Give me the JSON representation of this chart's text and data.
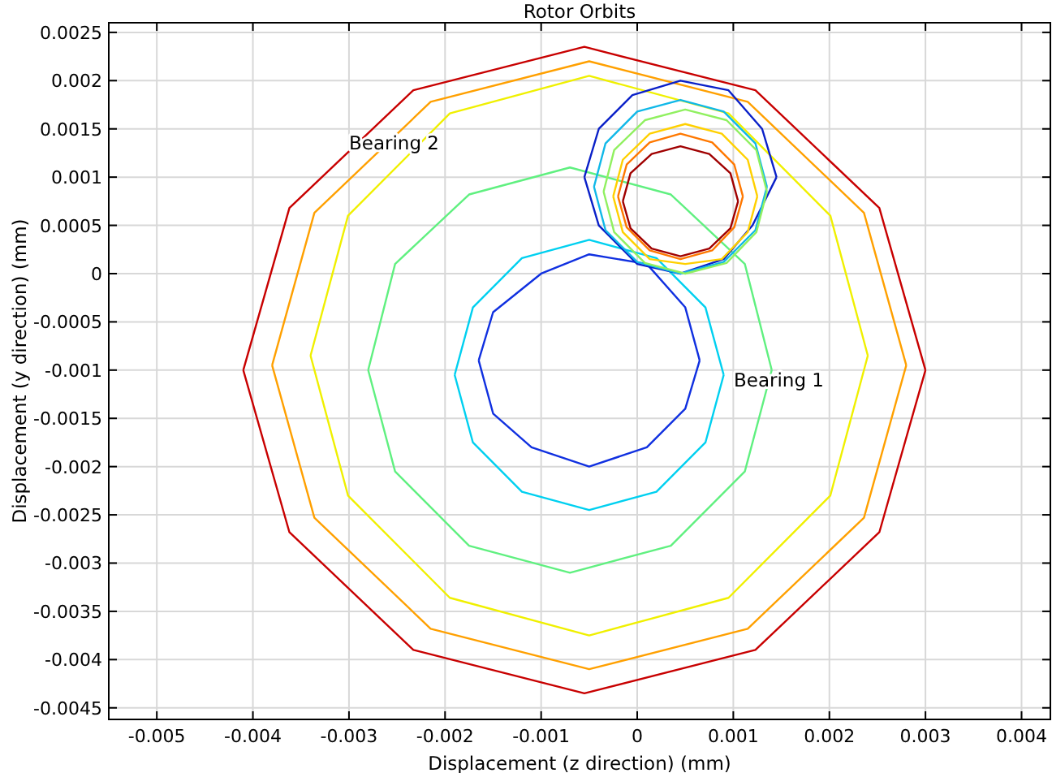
{
  "chart_data": {
    "type": "line",
    "title": "Rotor Orbits",
    "xlabel": "Displacement (z direction) (mm)",
    "ylabel": "Displacement (y direction) (mm)",
    "xlim": [
      -0.0055,
      0.0043
    ],
    "ylim": [
      -0.00462,
      0.0026
    ],
    "xticks": [
      -0.005,
      -0.004,
      -0.003,
      -0.002,
      -0.001,
      0,
      0.001,
      0.002,
      0.003,
      0.004
    ],
    "yticks": [
      -0.0045,
      -0.004,
      -0.0035,
      -0.003,
      -0.0025,
      -0.002,
      -0.0015,
      -0.001,
      -0.0005,
      0,
      0.0005,
      0.001,
      0.0015,
      0.002,
      0.0025
    ],
    "grid": true,
    "marker": "none",
    "line_style": "solid",
    "annotations": [
      "Bearing 2",
      "Bearing 1"
    ],
    "series": [
      {
        "color": "#1030e0",
        "x": [
          -0.00165,
          -0.0015,
          -0.001,
          -0.0005,
          0.0001,
          0.0005,
          0.00065
        ],
        "values": [
          -0.0009,
          -0.0004,
          0,
          0.0002,
          0.0001,
          -0.00035,
          -0.0009
        ]
      },
      {
        "color": "#1030e0",
        "x": [
          -0.00165,
          -0.0015,
          -0.0011,
          -0.0005,
          0.0001,
          0.0005,
          0.00065
        ],
        "values": [
          -0.0009,
          -0.00145,
          -0.0018,
          -0.002,
          -0.0018,
          -0.0014,
          -0.0009
        ]
      },
      {
        "color": "#00d0f0",
        "x": [
          -0.0019,
          -0.00171,
          -0.0012,
          -0.0005,
          0.0002,
          0.00071,
          0.0009
        ],
        "values": [
          -0.00105,
          -0.00035,
          0.00016,
          0.00035,
          0.00016,
          -0.00035,
          -0.00105
        ]
      },
      {
        "color": "#00d0f0",
        "x": [
          -0.0019,
          -0.00171,
          -0.0012,
          -0.0005,
          0.0002,
          0.00071,
          0.0009
        ],
        "values": [
          -0.00105,
          -0.00175,
          -0.00226,
          -0.00245,
          -0.00226,
          -0.00175,
          -0.00105
        ]
      },
      {
        "color": "#60f080",
        "x": [
          -0.0028,
          -0.00252,
          -0.00175,
          -0.0007,
          0.00035,
          0.00112,
          0.0014
        ],
        "values": [
          -0.001,
          0.0001,
          0.00082,
          0.0011,
          0.00082,
          0.0001,
          -0.001
        ]
      },
      {
        "color": "#60f080",
        "x": [
          -0.0028,
          -0.00252,
          -0.00175,
          -0.0007,
          0.00035,
          0.00112,
          0.0014
        ],
        "values": [
          -0.001,
          -0.00205,
          -0.00282,
          -0.0031,
          -0.00282,
          -0.00205,
          -0.001
        ]
      },
      {
        "color": "#f0f000",
        "x": [
          -0.0034,
          -0.00301,
          -0.00195,
          -0.0005,
          0.00095,
          0.00201,
          0.0024
        ],
        "values": [
          -0.00085,
          0.0006,
          0.00166,
          0.00205,
          0.00166,
          0.0006,
          -0.00085
        ]
      },
      {
        "color": "#f0f000",
        "x": [
          -0.0034,
          -0.00301,
          -0.00195,
          -0.0005,
          0.00095,
          0.00201,
          0.0024
        ],
        "values": [
          -0.00085,
          -0.0023,
          -0.00336,
          -0.00375,
          -0.00336,
          -0.0023,
          -0.00085
        ]
      },
      {
        "color": "#ffa000",
        "x": [
          -0.0038,
          -0.00336,
          -0.00215,
          -0.0005,
          0.00115,
          0.00236,
          0.0028
        ],
        "values": [
          -0.00095,
          0.00063,
          0.00178,
          0.0022,
          0.00178,
          0.00063,
          -0.00095
        ]
      },
      {
        "color": "#ffa000",
        "x": [
          -0.0038,
          -0.00336,
          -0.00215,
          -0.0005,
          0.00115,
          0.00236,
          0.0028
        ],
        "values": [
          -0.00095,
          -0.00253,
          -0.00368,
          -0.0041,
          -0.00368,
          -0.00253,
          -0.00095
        ]
      },
      {
        "color": "#c80000",
        "x": [
          -0.0041,
          -0.00362,
          -0.00233,
          -0.00055,
          0.00123,
          0.00252,
          0.003
        ],
        "values": [
          -0.001,
          0.00068,
          0.0019,
          0.00235,
          0.0019,
          0.00068,
          -0.001
        ]
      },
      {
        "color": "#c80000",
        "x": [
          -0.0041,
          -0.00362,
          -0.00233,
          -0.00055,
          0.00123,
          0.00252,
          0.003
        ],
        "values": [
          -0.001,
          -0.00268,
          -0.0039,
          -0.00435,
          -0.0039,
          -0.00268,
          -0.001
        ]
      },
      {
        "color": "#0a20c8",
        "x": [
          -0.00055,
          -0.0004,
          -5e-05,
          0.00045,
          0.00095,
          0.0013,
          0.00145
        ],
        "values": [
          0.001,
          0.0015,
          0.00185,
          0.002,
          0.0019,
          0.0015,
          0.001
        ]
      },
      {
        "color": "#0a20c8",
        "x": [
          -0.00055,
          -0.0004,
          0,
          0.00045,
          0.0009,
          0.0012,
          0.00145
        ],
        "values": [
          0.001,
          0.0005,
          0.0001,
          0,
          0.00015,
          0.0005,
          0.001
        ]
      },
      {
        "color": "#10b8e8",
        "x": [
          -0.00045,
          -0.00033,
          0,
          0.00045,
          0.0009,
          0.00123,
          0.00135
        ],
        "values": [
          0.0009,
          0.00135,
          0.00168,
          0.0018,
          0.00168,
          0.00135,
          0.0009
        ]
      },
      {
        "color": "#10b8e8",
        "x": [
          -0.00045,
          -0.00033,
          0,
          0.00045,
          0.0009,
          0.00123,
          0.00135
        ],
        "values": [
          0.0009,
          0.00045,
          0.00012,
          0,
          0.00012,
          0.00045,
          0.0009
        ]
      },
      {
        "color": "#90f060",
        "x": [
          -0.00035,
          -0.00024,
          8e-05,
          0.0005,
          0.00093,
          0.00124,
          0.00135
        ],
        "values": [
          0.00085,
          0.00128,
          0.00159,
          0.0017,
          0.00159,
          0.00128,
          0.00085
        ]
      },
      {
        "color": "#90f060",
        "x": [
          -0.00035,
          -0.00024,
          8e-05,
          0.0005,
          0.00093,
          0.00124,
          0.00135
        ],
        "values": [
          0.00085,
          0.00043,
          0.00011,
          0,
          0.00011,
          0.00043,
          0.00085
        ]
      },
      {
        "color": "#ffd000",
        "x": [
          -0.00025,
          -0.00015,
          0.00013,
          0.0005,
          0.00088,
          0.00115,
          0.00125
        ],
        "values": [
          0.0008,
          0.00118,
          0.00145,
          0.00155,
          0.00145,
          0.00118,
          0.0008
        ]
      },
      {
        "color": "#ffd000",
        "x": [
          -0.00025,
          -0.00015,
          0.00013,
          0.0005,
          0.00088,
          0.00115,
          0.00125
        ],
        "values": [
          0.0008,
          0.00043,
          0.00015,
          0.0001,
          0.00015,
          0.00043,
          0.0008
        ]
      },
      {
        "color": "#ff7800",
        "x": [
          -0.0002,
          -0.00011,
          0.00013,
          0.00045,
          0.00078,
          0.00101,
          0.0011
        ],
        "values": [
          0.0008,
          0.00113,
          0.00136,
          0.00145,
          0.00136,
          0.00113,
          0.0008
        ]
      },
      {
        "color": "#ff7800",
        "x": [
          -0.0002,
          -0.00011,
          0.00013,
          0.00045,
          0.00078,
          0.00101,
          0.0011
        ],
        "values": [
          0.0008,
          0.00048,
          0.00024,
          0.00015,
          0.00024,
          0.00048,
          0.0008
        ]
      },
      {
        "color": "#a00000",
        "x": [
          -0.00015,
          -7e-05,
          0.00015,
          0.00045,
          0.00075,
          0.00097,
          0.00105
        ],
        "values": [
          0.00075,
          0.00104,
          0.00124,
          0.00132,
          0.00124,
          0.00104,
          0.00075
        ]
      },
      {
        "color": "#a00000",
        "x": [
          -0.00015,
          -7e-05,
          0.00015,
          0.00045,
          0.00075,
          0.00097,
          0.00105
        ],
        "values": [
          0.00075,
          0.00047,
          0.00026,
          0.00018,
          0.00026,
          0.00047,
          0.00075
        ]
      }
    ]
  }
}
